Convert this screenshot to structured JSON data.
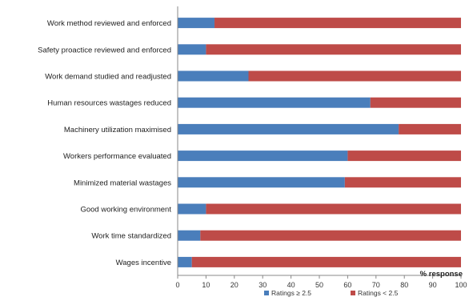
{
  "chart_data": {
    "type": "bar",
    "orientation": "horizontal",
    "stacked": true,
    "categories": [
      "Work method reviewed and enforced",
      "Safety proactice reviewed and enforced",
      "Work demand studied and readjusted",
      "Human resources wastages reduced",
      "Machinery utilization maximised",
      "Workers performance evaluated",
      "Minimized material wastages",
      "Good working environment",
      "Work time standardized",
      "Wages incentive"
    ],
    "series": [
      {
        "name": "Ratings ≥ 2.5",
        "color": "#4a7ebb",
        "values": [
          13,
          10,
          25,
          68,
          78,
          60,
          59,
          10,
          8,
          5
        ]
      },
      {
        "name": "Ratings < 2.5",
        "color": "#be4b48",
        "values": [
          87,
          90,
          75,
          32,
          22,
          40,
          41,
          90,
          92,
          95
        ]
      }
    ],
    "xlabel": "% response",
    "xlim": [
      0,
      100
    ],
    "xticks": [
      0,
      10,
      20,
      30,
      40,
      50,
      60,
      70,
      80,
      90,
      100
    ],
    "grid": false,
    "legend_position": "bottom"
  }
}
